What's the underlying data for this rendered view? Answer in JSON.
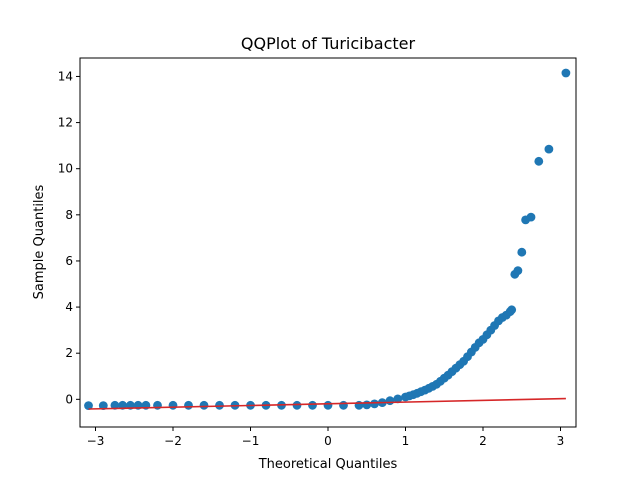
{
  "chart_data": {
    "type": "scatter",
    "title": "QQPlot of Turicibacter",
    "xlabel": "Theoretical Quantiles",
    "ylabel": "Sample Quantiles",
    "xlim": [
      -3.2,
      3.2
    ],
    "ylim": [
      -1.2,
      14.8
    ],
    "xticks": [
      -3,
      -2,
      -1,
      0,
      1,
      2,
      3
    ],
    "yticks": [
      0,
      2,
      4,
      6,
      8,
      10,
      12,
      14
    ],
    "grid": false,
    "colors": {
      "points": "#1f77b4",
      "reference_line": "#d62728"
    },
    "points": {
      "x": [
        -3.09,
        -2.9,
        -2.75,
        -2.65,
        -2.55,
        -2.45,
        -2.35,
        -2.2,
        -2.0,
        -1.8,
        -1.6,
        -1.4,
        -1.2,
        -1.0,
        -0.8,
        -0.6,
        -0.4,
        -0.2,
        0.0,
        0.2,
        0.4,
        0.5,
        0.6,
        0.7,
        0.8,
        0.9,
        1.0,
        1.05,
        1.1,
        1.15,
        1.2,
        1.25,
        1.3,
        1.35,
        1.4,
        1.45,
        1.5,
        1.55,
        1.6,
        1.65,
        1.7,
        1.75,
        1.8,
        1.85,
        1.9,
        1.95,
        2.0,
        2.05,
        2.1,
        2.15,
        2.2,
        2.25,
        2.3,
        2.35,
        2.37,
        2.41,
        2.45,
        2.5,
        2.55,
        2.62,
        2.72,
        2.85,
        3.07
      ],
      "y": [
        -0.27,
        -0.27,
        -0.26,
        -0.26,
        -0.26,
        -0.26,
        -0.26,
        -0.26,
        -0.26,
        -0.26,
        -0.26,
        -0.26,
        -0.26,
        -0.26,
        -0.26,
        -0.26,
        -0.26,
        -0.26,
        -0.26,
        -0.26,
        -0.26,
        -0.24,
        -0.2,
        -0.14,
        -0.06,
        0.02,
        0.1,
        0.15,
        0.2,
        0.26,
        0.33,
        0.4,
        0.48,
        0.56,
        0.65,
        0.78,
        0.92,
        1.05,
        1.2,
        1.35,
        1.5,
        1.65,
        1.85,
        2.05,
        2.25,
        2.45,
        2.6,
        2.8,
        3.0,
        3.2,
        3.4,
        3.55,
        3.65,
        3.8,
        3.88,
        5.42,
        5.58,
        6.38,
        7.78,
        7.9,
        10.32,
        10.85,
        14.15
      ]
    },
    "reference_line": {
      "x": [
        -3.09,
        3.07
      ],
      "y": [
        -0.42,
        0.03
      ]
    }
  }
}
